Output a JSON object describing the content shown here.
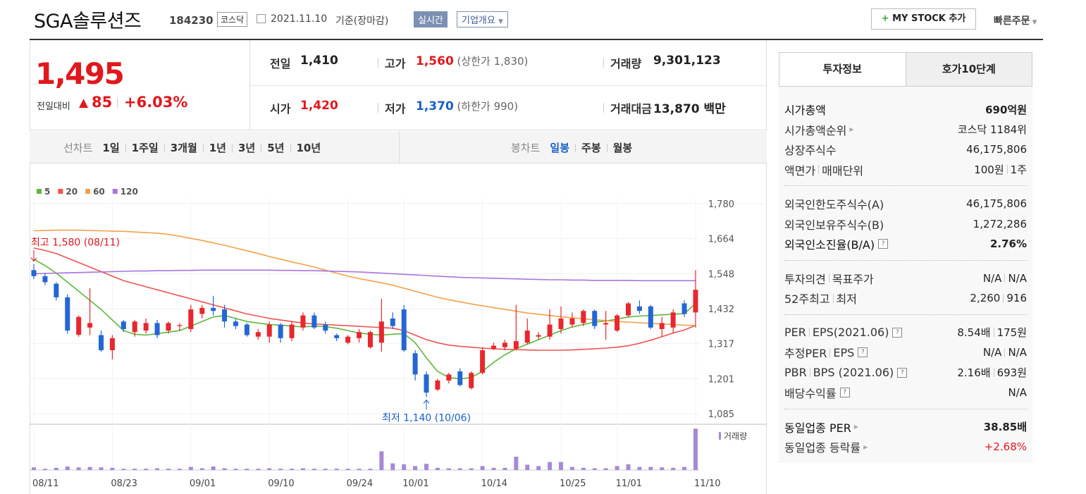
{
  "header": {
    "title": "SGA솔루션즈",
    "code": "184230",
    "market": "코스닥",
    "date": "2021.11.10",
    "basis": "기준(장마감)",
    "realtime": "실시간",
    "company": "기업개요",
    "mystock": "MY STOCK 추가",
    "quick_order": "빠른주문"
  },
  "price": {
    "value": "1,495",
    "change_label": "전일대비",
    "change": "85",
    "change_rate": "+6.03%",
    "color": "#e0171d"
  },
  "summary": {
    "rows": [
      [
        {
          "label": "전일",
          "value": "1,410",
          "color": "#222222"
        },
        {
          "label": "고가",
          "value": "1,560",
          "color": "#e0171d",
          "limit_label": "상한가",
          "limit": "1,830"
        },
        {
          "label": "거래량",
          "value": "9,301,123",
          "color": "#222222"
        }
      ],
      [
        {
          "label": "시가",
          "value": "1,420",
          "color": "#e0171d"
        },
        {
          "label": "저가",
          "value": "1,370",
          "color": "#1a5fc8",
          "limit_label": "하한가",
          "limit": "990"
        },
        {
          "label": "거래대금",
          "value": "13,870",
          "unit": "백만",
          "color": "#222222"
        }
      ]
    ]
  },
  "chart_tabs": {
    "line_label": "선차트",
    "line_periods": [
      "1일",
      "1주일",
      "3개월",
      "1년",
      "3년",
      "5년",
      "10년"
    ],
    "candle_label": "봉차트",
    "candle_periods": [
      "일봉",
      "주봉",
      "월봉"
    ],
    "active_candle_period": "일봉"
  },
  "chart_data": {
    "type": "candlestick",
    "categories": [
      "08/11",
      null,
      null,
      null,
      null,
      null,
      null,
      "08/23",
      null,
      null,
      null,
      null,
      null,
      null,
      "09/01",
      null,
      null,
      null,
      null,
      null,
      null,
      "09/10",
      null,
      null,
      null,
      null,
      null,
      null,
      "09/24",
      null,
      null,
      null,
      null,
      "10/01",
      null,
      null,
      null,
      null,
      null,
      null,
      "10/14",
      null,
      null,
      null,
      null,
      null,
      null,
      "10/25",
      null,
      null,
      null,
      null,
      "11/01",
      null,
      null,
      null,
      null,
      null,
      null,
      "11/10"
    ],
    "candles": {
      "up_color": "#e8272d",
      "down_color": "#2466d4",
      "open": [
        1560,
        1540,
        1515,
        1470,
        1346,
        1370,
        1345,
        1295,
        1390,
        1355,
        1360,
        1385,
        1360,
        1375,
        1365,
        1415,
        1435,
        1430,
        1390,
        1380,
        1340,
        1340,
        1380,
        1335,
        1370,
        1410,
        1380,
        1345,
        1320,
        1335,
        1305,
        1320,
        1400,
        1430,
        1285,
        1215,
        1165,
        1195,
        1225,
        1170,
        1220,
        1300,
        1305,
        1300,
        1320,
        1340,
        1340,
        1365,
        1380,
        1385,
        1425,
        1380,
        1360,
        1410,
        1440,
        1440,
        1365,
        1370,
        1450,
        1420
      ],
      "high": [
        1580,
        1550,
        1520,
        1480,
        1410,
        1500,
        1360,
        1345,
        1395,
        1395,
        1400,
        1395,
        1390,
        1385,
        1445,
        1445,
        1475,
        1445,
        1400,
        1385,
        1365,
        1390,
        1385,
        1390,
        1420,
        1420,
        1390,
        1350,
        1345,
        1365,
        1360,
        1465,
        1420,
        1445,
        1295,
        1225,
        1200,
        1220,
        1235,
        1225,
        1305,
        1320,
        1330,
        1445,
        1400,
        1355,
        1430,
        1440,
        1420,
        1430,
        1430,
        1425,
        1415,
        1455,
        1460,
        1445,
        1405,
        1430,
        1460,
        1560
      ],
      "low": [
        1530,
        1510,
        1460,
        1350,
        1340,
        1345,
        1290,
        1265,
        1355,
        1340,
        1350,
        1335,
        1350,
        1360,
        1355,
        1400,
        1410,
        1370,
        1365,
        1340,
        1330,
        1320,
        1320,
        1325,
        1360,
        1365,
        1350,
        1325,
        1315,
        1320,
        1300,
        1290,
        1365,
        1290,
        1195,
        1140,
        1160,
        1185,
        1175,
        1165,
        1215,
        1295,
        1295,
        1295,
        1315,
        1330,
        1330,
        1350,
        1370,
        1375,
        1365,
        1330,
        1355,
        1405,
        1415,
        1365,
        1340,
        1350,
        1405,
        1370
      ],
      "close": [
        1540,
        1520,
        1470,
        1360,
        1405,
        1385,
        1295,
        1335,
        1365,
        1390,
        1385,
        1345,
        1385,
        1378,
        1430,
        1435,
        1425,
        1390,
        1375,
        1345,
        1355,
        1380,
        1335,
        1380,
        1410,
        1370,
        1360,
        1335,
        1340,
        1355,
        1355,
        1390,
        1375,
        1295,
        1215,
        1155,
        1195,
        1215,
        1180,
        1220,
        1295,
        1310,
        1320,
        1325,
        1360,
        1345,
        1380,
        1400,
        1400,
        1425,
        1375,
        1385,
        1410,
        1450,
        1425,
        1370,
        1385,
        1420,
        1415,
        1495
      ]
    },
    "series": [
      {
        "name": "5",
        "color": "#5cb83a",
        "values": [
          1596,
          1575,
          1550,
          1520,
          1490,
          1460,
          1430,
          1395,
          1360,
          1348,
          1345,
          1350,
          1355,
          1360,
          1375,
          1390,
          1405,
          1410,
          1400,
          1390,
          1385,
          1380,
          1378,
          1375,
          1372,
          1375,
          1373,
          1368,
          1360,
          1352,
          1348,
          1345,
          1348,
          1350,
          1320,
          1270,
          1225,
          1205,
          1200,
          1205,
          1225,
          1255,
          1280,
          1300,
          1315,
          1330,
          1345,
          1360,
          1372,
          1380,
          1388,
          1392,
          1398,
          1405,
          1408,
          1410,
          1412,
          1414,
          1416,
          1450
        ]
      },
      {
        "name": "20",
        "color": "#ef5350",
        "values": [
          1633,
          1625,
          1615,
          1600,
          1585,
          1570,
          1555,
          1540,
          1525,
          1515,
          1505,
          1495,
          1485,
          1475,
          1465,
          1455,
          1445,
          1435,
          1425,
          1415,
          1408,
          1400,
          1395,
          1390,
          1385,
          1382,
          1380,
          1378,
          1376,
          1374,
          1372,
          1370,
          1368,
          1360,
          1345,
          1330,
          1320,
          1312,
          1308,
          1305,
          1302,
          1300,
          1298,
          1297,
          1296,
          1295,
          1295,
          1295,
          1296,
          1298,
          1300,
          1302,
          1305,
          1310,
          1318,
          1328,
          1340,
          1352,
          1362,
          1377
        ]
      },
      {
        "name": "60",
        "color": "#f5a04a",
        "values": [
          1690,
          1691,
          1692,
          1692,
          1692,
          1691,
          1690,
          1689,
          1688,
          1686,
          1684,
          1682,
          1678,
          1672,
          1665,
          1658,
          1650,
          1642,
          1633,
          1624,
          1615,
          1605,
          1596,
          1587,
          1579,
          1570,
          1560,
          1550,
          1540,
          1532,
          1525,
          1518,
          1510,
          1500,
          1490,
          1480,
          1470,
          1462,
          1455,
          1448,
          1442,
          1436,
          1430,
          1424,
          1418,
          1414,
          1410,
          1406,
          1402,
          1399,
          1396,
          1393,
          1390,
          1388,
          1386,
          1384,
          1382,
          1380,
          1378,
          1377
        ]
      },
      {
        "name": "120",
        "color": "#a974df",
        "values": [
          1548,
          1549,
          1550,
          1551,
          1552,
          1553,
          1554,
          1555,
          1556,
          1557,
          1557,
          1558,
          1558,
          1559,
          1559,
          1560,
          1560,
          1560,
          1560,
          1560,
          1560,
          1560,
          1559,
          1559,
          1558,
          1558,
          1557,
          1556,
          1555,
          1554,
          1552,
          1550,
          1548,
          1546,
          1544,
          1542,
          1540,
          1538,
          1536,
          1535,
          1534,
          1533,
          1532,
          1531,
          1530,
          1529,
          1528,
          1528,
          1527,
          1527,
          1526,
          1526,
          1526,
          1526,
          1525,
          1525,
          1525,
          1525,
          1525,
          1525
        ]
      }
    ],
    "ylim": [
      1055,
      1796
    ],
    "yticks": [
      {
        "value": 1780,
        "label": "1,780"
      },
      {
        "value": 1664,
        "label": "1,664"
      },
      {
        "value": 1548,
        "label": "1,548"
      },
      {
        "value": 1432,
        "label": "1,432"
      },
      {
        "value": 1317,
        "label": "1,317"
      },
      {
        "value": 1201,
        "label": "1,201"
      },
      {
        "value": 1085,
        "label": "1,085"
      }
    ],
    "grid": true,
    "annotations": {
      "high": "최고 1,580 (08/11)",
      "low": "최저 1,140 (10/06)",
      "high_color": "#e0171d",
      "low_color": "#1a5fc8"
    },
    "volume": {
      "name": "거래량",
      "color": "#a58ad6",
      "ylim": [
        0,
        9500000
      ],
      "values": [
        600000,
        300000,
        500000,
        800000,
        600000,
        700000,
        600000,
        500000,
        300000,
        300000,
        300000,
        400000,
        300000,
        300000,
        700000,
        400000,
        800000,
        400000,
        300000,
        300000,
        300000,
        400000,
        300000,
        300000,
        400000,
        300000,
        300000,
        300000,
        300000,
        300000,
        300000,
        4200000,
        1500000,
        1300000,
        900000,
        1400000,
        500000,
        400000,
        400000,
        400000,
        900000,
        500000,
        500000,
        3000000,
        1200000,
        900000,
        1800000,
        1800000,
        700000,
        500000,
        400000,
        400000,
        900000,
        1300000,
        700000,
        700000,
        600000,
        500000,
        700000,
        9300000
      ]
    }
  },
  "panel": {
    "tabs": [
      "투자정보",
      "호가10단계"
    ],
    "active_tab": "투자정보",
    "groups": [
      [
        {
          "label": [
            "시가총액"
          ],
          "value": [
            "690억원"
          ],
          "bold": true
        },
        {
          "label": [
            "시가총액순위"
          ],
          "value": [
            "코스닥 1184위"
          ],
          "icon": "arrow"
        },
        {
          "label": [
            "상장주식수"
          ],
          "value": [
            "46,175,806"
          ]
        },
        {
          "label": [
            "액면가",
            "매매단위"
          ],
          "value": [
            "100원",
            "1주"
          ]
        }
      ],
      [
        {
          "label": [
            "외국인한도주식수(A)"
          ],
          "value": [
            "46,175,806"
          ]
        },
        {
          "label": [
            "외국인보유주식수(B)"
          ],
          "value": [
            "1,272,286"
          ]
        },
        {
          "label": [
            "외국인소진율(B/A)"
          ],
          "value": [
            "2.76%"
          ],
          "bold": true,
          "icon": "help"
        }
      ],
      [
        {
          "label": [
            "투자의견",
            "목표주가"
          ],
          "value": [
            "N/A",
            "N/A"
          ]
        },
        {
          "label": [
            "52주최고",
            "최저"
          ],
          "value": [
            "2,260",
            "916"
          ]
        }
      ],
      [
        {
          "label": [
            "PER",
            "EPS(2021.06)"
          ],
          "value": [
            "8.54배",
            "175원"
          ],
          "icon": "help"
        },
        {
          "label": [
            "추정PER",
            "EPS"
          ],
          "value": [
            "N/A",
            "N/A"
          ],
          "icon": "help"
        },
        {
          "label": [
            "PBR",
            "BPS (2021.06)"
          ],
          "value": [
            "2.16배",
            "693원"
          ],
          "icon": "help"
        },
        {
          "label": [
            "배당수익률"
          ],
          "value": [
            "N/A"
          ],
          "icon": "help"
        }
      ],
      [
        {
          "label": [
            "동일업종 PER"
          ],
          "value": [
            "38.85배"
          ],
          "bold": true,
          "icon": "arrow"
        },
        {
          "label": [
            "동일업종 등락률"
          ],
          "value": [
            "+2.68%"
          ],
          "color": "#e0171d",
          "icon": "arrow"
        }
      ]
    ]
  }
}
